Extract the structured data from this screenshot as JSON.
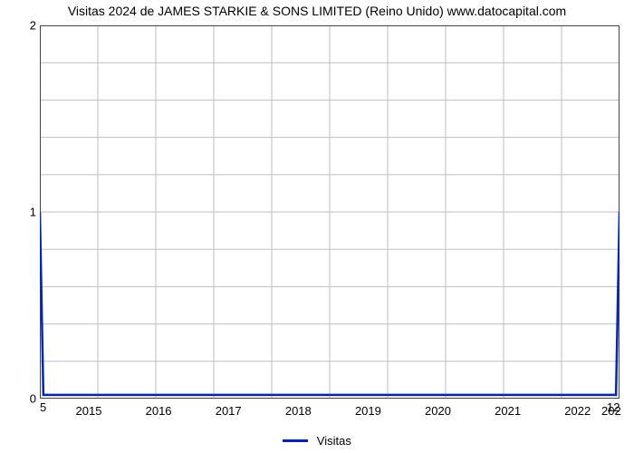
{
  "chart": {
    "type": "line",
    "title": "Visitas 2024 de JAMES STARKIE & SONS LIMITED (Reino Unido) www.datocapital.com",
    "title_fontsize": 14,
    "title_color": "#000000",
    "background_color": "#ffffff",
    "plot_border_color": "#444444",
    "plot_border_width": 1,
    "grid": {
      "color": "#bfbfbf",
      "width": 1,
      "major_x_count": 9,
      "minor_y_per_major": 5
    },
    "x_axis": {
      "min": 2014.3,
      "max": 2022.6,
      "ticks": [
        2015,
        2016,
        2017,
        2018,
        2019,
        2020,
        2021,
        2022
      ],
      "labels": [
        "2015",
        "2016",
        "2017",
        "2018",
        "2019",
        "2020",
        "2021",
        "2022"
      ],
      "label_fontsize": 13
    },
    "y_axis": {
      "min": 0,
      "max": 2,
      "ticks": [
        0,
        1,
        2
      ],
      "labels": [
        "0",
        "1",
        "2"
      ],
      "label_fontsize": 13
    },
    "boundary_labels": {
      "left_below_zero": "5",
      "right_below_zero": "12",
      "right_year_cut": "202"
    },
    "series": [
      {
        "name": "Visitas",
        "color": "#0022cc",
        "line_width": 2.5,
        "points": [
          {
            "x": 2014.3,
            "y": 1.0
          },
          {
            "x": 2014.35,
            "y": 0.02
          },
          {
            "x": 2022.55,
            "y": 0.02
          },
          {
            "x": 2022.6,
            "y": 1.0
          }
        ]
      }
    ],
    "legend": {
      "label": "Visitas",
      "color": "#0022cc",
      "fontsize": 13,
      "position": "bottom-center"
    }
  }
}
